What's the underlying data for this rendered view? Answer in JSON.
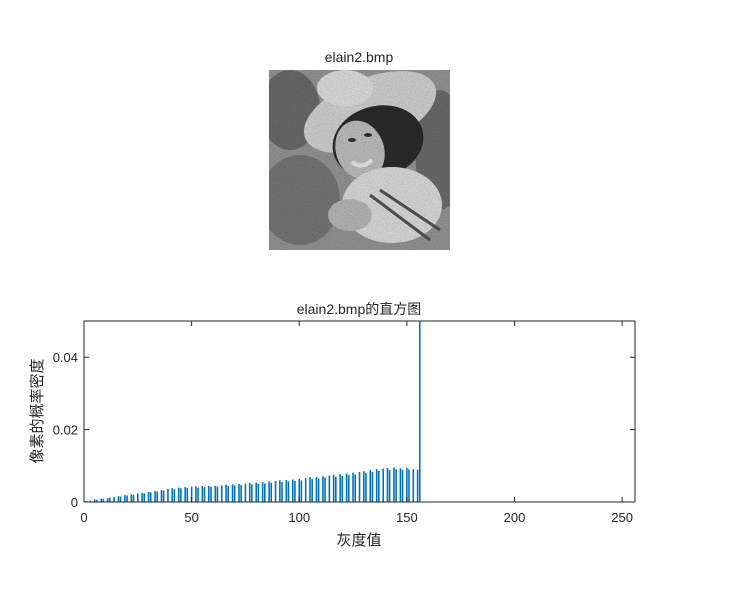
{
  "figure": {
    "image_title": "elain2.bmp",
    "image_description": "grayscale dithered portrait of a woman wearing a wide-brimmed hat"
  },
  "chart_data": {
    "type": "bar",
    "title": "elain2.bmp的直方图",
    "xlabel": "灰度值",
    "ylabel": "像素的概率密度",
    "xlim": [
      0,
      256
    ],
    "ylim": [
      0,
      0.05
    ],
    "xticks": [
      0,
      50,
      100,
      150,
      200,
      250
    ],
    "yticks": [
      0,
      0.02,
      0.04
    ],
    "ytick_labels": [
      "0",
      "0.02",
      "0.04"
    ],
    "grid": false,
    "bar_color": "#0072BD",
    "x": [
      1,
      3,
      5,
      6,
      8,
      9,
      11,
      12,
      14,
      16,
      17,
      19,
      20,
      22,
      23,
      25,
      27,
      28,
      30,
      31,
      33,
      34,
      36,
      37,
      39,
      41,
      42,
      44,
      45,
      47,
      48,
      50,
      52,
      53,
      55,
      56,
      58,
      59,
      61,
      62,
      64,
      66,
      67,
      69,
      70,
      72,
      73,
      75,
      77,
      78,
      80,
      81,
      83,
      84,
      86,
      87,
      89,
      91,
      92,
      94,
      95,
      97,
      98,
      100,
      101,
      103,
      105,
      106,
      108,
      109,
      111,
      112,
      114,
      116,
      117,
      119,
      120,
      122,
      123,
      125,
      126,
      128,
      130,
      131,
      133,
      134,
      136,
      137,
      139,
      141,
      142,
      144,
      145,
      147,
      148,
      150,
      151,
      153,
      155,
      156
    ],
    "values": [
      0.0003,
      0.0004,
      0.0007,
      0.0006,
      0.0009,
      0.0008,
      0.0011,
      0.0012,
      0.0014,
      0.0016,
      0.0015,
      0.0019,
      0.0018,
      0.0021,
      0.002,
      0.0023,
      0.0025,
      0.0024,
      0.0028,
      0.0027,
      0.003,
      0.0029,
      0.0033,
      0.0031,
      0.0036,
      0.0038,
      0.0035,
      0.004,
      0.0038,
      0.0041,
      0.0039,
      0.0042,
      0.0043,
      0.004,
      0.0044,
      0.0041,
      0.0044,
      0.0042,
      0.0045,
      0.0043,
      0.0046,
      0.0048,
      0.0044,
      0.0049,
      0.0046,
      0.005,
      0.0047,
      0.0051,
      0.0053,
      0.0049,
      0.0054,
      0.005,
      0.0055,
      0.0051,
      0.0057,
      0.0053,
      0.0058,
      0.006,
      0.0055,
      0.0061,
      0.0057,
      0.0062,
      0.0058,
      0.0064,
      0.006,
      0.0066,
      0.0068,
      0.0063,
      0.0069,
      0.0065,
      0.0071,
      0.0067,
      0.0073,
      0.0075,
      0.007,
      0.0077,
      0.0072,
      0.0079,
      0.0074,
      0.0081,
      0.0076,
      0.0083,
      0.0085,
      0.008,
      0.0088,
      0.0083,
      0.0091,
      0.0086,
      0.0092,
      0.0094,
      0.0088,
      0.0095,
      0.009,
      0.0093,
      0.0089,
      0.0094,
      0.009,
      0.0091,
      0.0089,
      0.05
    ]
  }
}
